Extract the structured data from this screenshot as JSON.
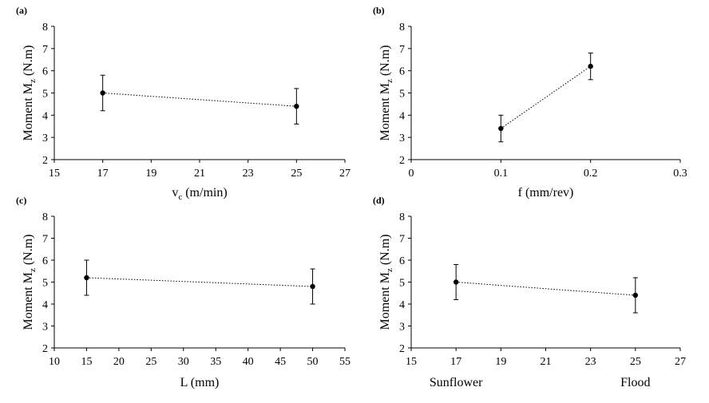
{
  "chart_data": [
    {
      "type": "line",
      "panel_label": "(a)",
      "xlabel": "v",
      "xlabel_sub": "c",
      "xlabel_rest": " (m/min)",
      "ylabel": "Moment M",
      "ylabel_sub": "z",
      "ylabel_rest": " (N.m)",
      "xlim": [
        15,
        27
      ],
      "xticks": [
        "15",
        "17",
        "19",
        "21",
        "23",
        "25",
        "27"
      ],
      "ylim": [
        2,
        8
      ],
      "yticks": [
        "2",
        "3",
        "4",
        "5",
        "6",
        "7",
        "8"
      ],
      "x": [
        17,
        25
      ],
      "y": [
        5.0,
        4.4
      ],
      "yerr": [
        0.8,
        0.8
      ],
      "grid": false
    },
    {
      "type": "line",
      "panel_label": "(b)",
      "xlabel": "f (mm/rev)",
      "xlabel_sub": "",
      "xlabel_rest": "",
      "ylabel": "Moment M",
      "ylabel_sub": "z",
      "ylabel_rest": " (N.m)",
      "xlim": [
        0,
        0.3
      ],
      "xticks": [
        "0",
        "0.1",
        "0.2",
        "0.3"
      ],
      "ylim": [
        2,
        8
      ],
      "yticks": [
        "2",
        "3",
        "4",
        "5",
        "6",
        "7",
        "8"
      ],
      "x": [
        0.1,
        0.2
      ],
      "y": [
        3.4,
        6.2
      ],
      "yerr": [
        0.6,
        0.6
      ],
      "grid": false
    },
    {
      "type": "line",
      "panel_label": "(c)",
      "xlabel": "L (mm)",
      "xlabel_sub": "",
      "xlabel_rest": "",
      "ylabel": "Moment M",
      "ylabel_sub": "z",
      "ylabel_rest": " (N.m)",
      "xlim": [
        10,
        55
      ],
      "xticks": [
        "10",
        "15",
        "20",
        "25",
        "30",
        "35",
        "40",
        "45",
        "50",
        "55"
      ],
      "ylim": [
        2,
        8
      ],
      "yticks": [
        "2",
        "3",
        "4",
        "5",
        "6",
        "7",
        "8"
      ],
      "x": [
        15,
        50
      ],
      "y": [
        5.2,
        4.8
      ],
      "yerr": [
        0.8,
        0.8
      ],
      "grid": false
    },
    {
      "type": "line",
      "panel_label": "(d)",
      "xlabel": "",
      "xlabel_sub": "",
      "xlabel_rest": "",
      "ylabel": "Moment M",
      "ylabel_sub": "z",
      "ylabel_rest": " (N.m)",
      "xlim": [
        15,
        27
      ],
      "xticks": [
        "15",
        "17",
        "19",
        "21",
        "23",
        "25",
        "27"
      ],
      "ylim": [
        2,
        8
      ],
      "yticks": [
        "2",
        "3",
        "4",
        "5",
        "6",
        "7",
        "8"
      ],
      "x": [
        17,
        25
      ],
      "y": [
        5.0,
        4.4
      ],
      "yerr": [
        0.8,
        0.8
      ],
      "categories": [
        "Sunflower",
        "Flood"
      ],
      "grid": false
    }
  ]
}
